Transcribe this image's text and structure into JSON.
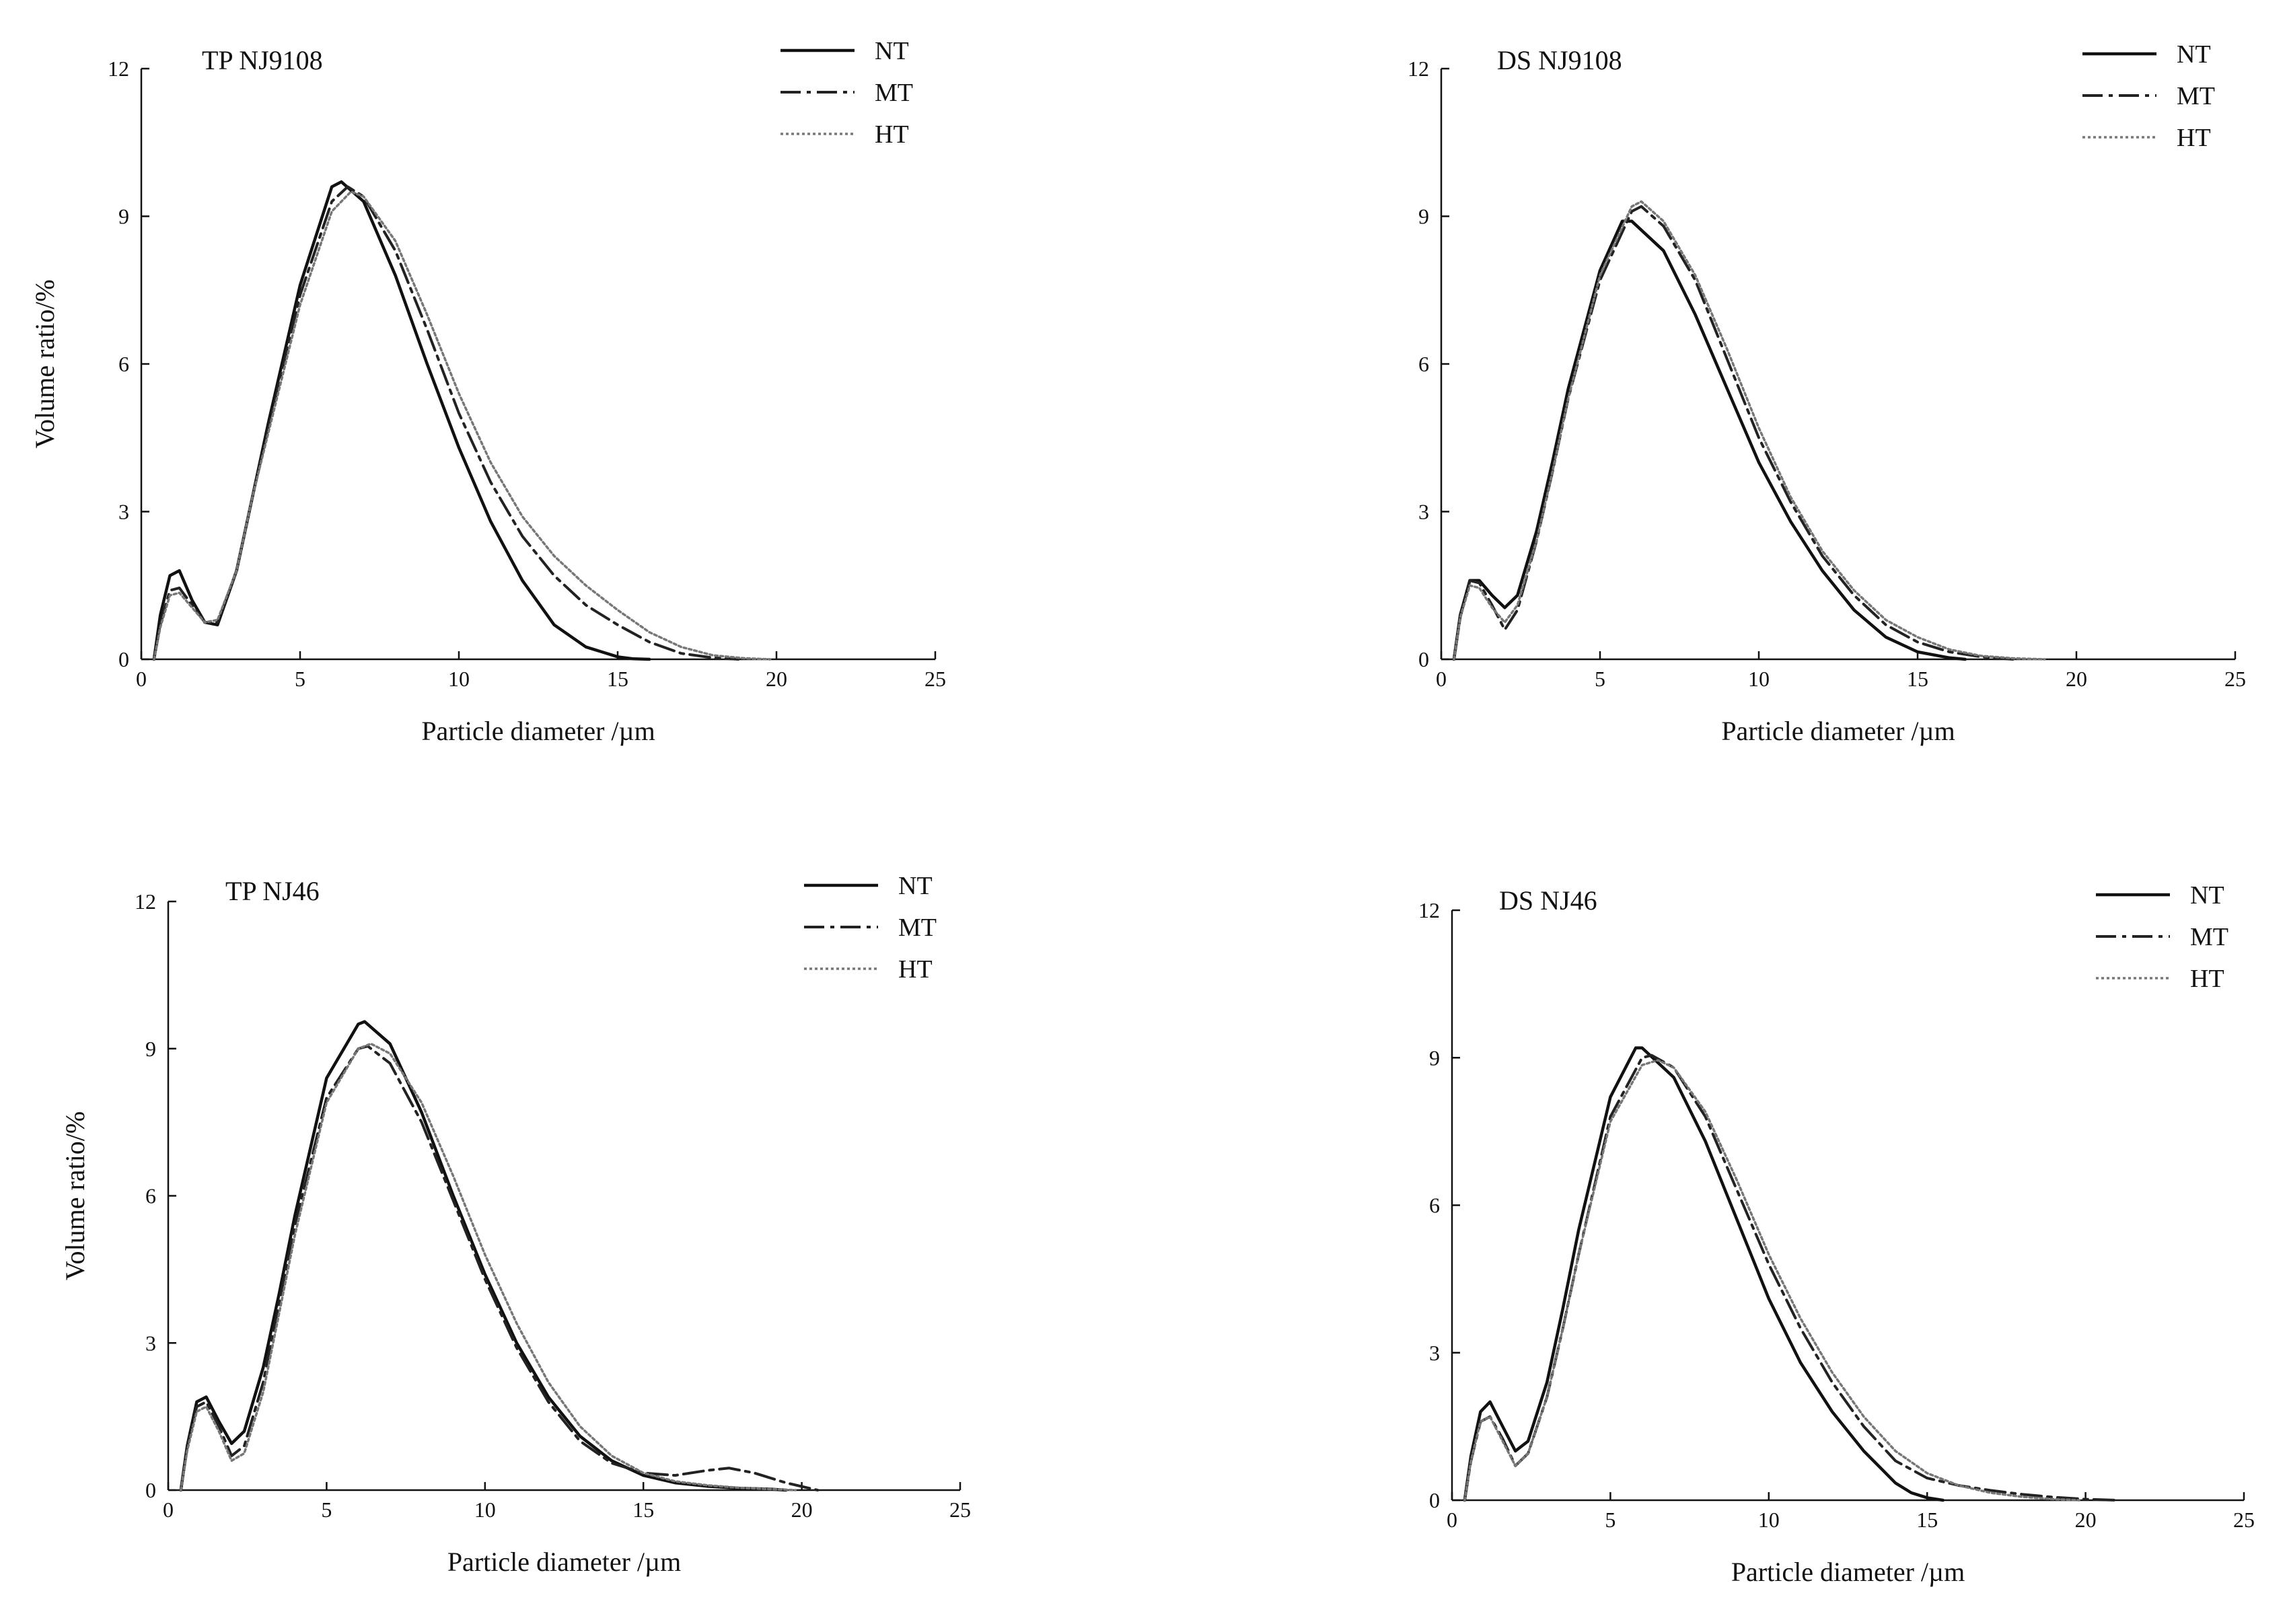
{
  "figure": {
    "colors": {
      "axis": "#111111",
      "NT": "#111111",
      "MT": "#222222",
      "HT": "#777777"
    }
  },
  "chart_data": [
    {
      "type": "line",
      "title": "TP NJ9108",
      "xlabel": "Particle diameter /µm",
      "ylabel": "Volume ratio/%",
      "xlim": [
        0,
        25
      ],
      "ylim": [
        0,
        12
      ],
      "xticks": [
        "0",
        "5",
        "10",
        "15",
        "20",
        "25"
      ],
      "yticks": [
        "0",
        "3",
        "6",
        "9",
        "12"
      ],
      "legend": [
        "NT",
        "MT",
        "HT"
      ],
      "series": [
        {
          "name": "NT",
          "style": "solid",
          "x": [
            0.4,
            0.6,
            0.9,
            1.2,
            1.6,
            2.0,
            2.4,
            3.0,
            3.5,
            4.0,
            5.0,
            6.0,
            6.3,
            7.0,
            8.0,
            9.0,
            10.0,
            11.0,
            12.0,
            13.0,
            14.0,
            15.0,
            15.5,
            16.0
          ],
          "y": [
            0,
            0.9,
            1.7,
            1.8,
            1.2,
            0.75,
            0.7,
            1.8,
            3.3,
            4.8,
            7.6,
            9.6,
            9.7,
            9.3,
            7.8,
            6.0,
            4.3,
            2.8,
            1.6,
            0.7,
            0.25,
            0.05,
            0.01,
            0
          ]
        },
        {
          "name": "MT",
          "style": "dashdot",
          "x": [
            0.4,
            0.6,
            0.9,
            1.2,
            1.6,
            2.0,
            2.4,
            3.0,
            3.5,
            4.0,
            5.0,
            6.0,
            6.5,
            7.0,
            8.0,
            9.0,
            10.0,
            11.0,
            12.0,
            13.0,
            14.0,
            15.0,
            16.0,
            17.0,
            18.0,
            18.8
          ],
          "y": [
            0,
            0.7,
            1.4,
            1.45,
            1.1,
            0.75,
            0.75,
            1.8,
            3.3,
            4.7,
            7.4,
            9.3,
            9.6,
            9.4,
            8.3,
            6.7,
            5.0,
            3.6,
            2.5,
            1.7,
            1.1,
            0.7,
            0.35,
            0.12,
            0.03,
            0
          ]
        },
        {
          "name": "HT",
          "style": "dotted",
          "x": [
            0.4,
            0.6,
            0.9,
            1.2,
            1.6,
            2.0,
            2.4,
            3.0,
            3.5,
            4.0,
            5.0,
            6.0,
            6.6,
            7.0,
            8.0,
            9.0,
            10.0,
            11.0,
            12.0,
            13.0,
            14.0,
            15.0,
            16.0,
            17.0,
            18.0,
            19.0,
            19.8
          ],
          "y": [
            0,
            0.65,
            1.3,
            1.35,
            1.05,
            0.75,
            0.8,
            1.8,
            3.3,
            4.6,
            7.2,
            9.1,
            9.5,
            9.4,
            8.5,
            7.0,
            5.4,
            4.0,
            2.9,
            2.1,
            1.5,
            1.0,
            0.55,
            0.25,
            0.08,
            0.02,
            0
          ]
        }
      ]
    },
    {
      "type": "line",
      "title": "DS NJ9108",
      "xlabel": "Particle diameter /µm",
      "ylabel": "",
      "xlim": [
        0,
        25
      ],
      "ylim": [
        0,
        12
      ],
      "xticks": [
        "0",
        "5",
        "10",
        "15",
        "20",
        "25"
      ],
      "yticks": [
        "0",
        "3",
        "6",
        "9",
        "12"
      ],
      "legend": [
        "NT",
        "MT",
        "HT"
      ],
      "series": [
        {
          "name": "NT",
          "style": "solid",
          "x": [
            0.4,
            0.6,
            0.9,
            1.2,
            1.6,
            2.0,
            2.4,
            3.0,
            3.5,
            4.0,
            5.0,
            5.7,
            6.0,
            7.0,
            8.0,
            9.0,
            10.0,
            11.0,
            12.0,
            13.0,
            14.0,
            15.0,
            16.0,
            16.5
          ],
          "y": [
            0,
            0.9,
            1.6,
            1.6,
            1.3,
            1.05,
            1.3,
            2.6,
            4.0,
            5.5,
            7.9,
            8.9,
            8.9,
            8.3,
            7.0,
            5.5,
            4.0,
            2.8,
            1.8,
            1.0,
            0.45,
            0.15,
            0.03,
            0
          ]
        },
        {
          "name": "MT",
          "style": "dashdot",
          "x": [
            0.4,
            0.6,
            0.9,
            1.2,
            1.6,
            2.0,
            2.4,
            3.0,
            3.5,
            4.0,
            5.0,
            6.0,
            6.3,
            7.0,
            8.0,
            9.0,
            10.0,
            11.0,
            12.0,
            13.0,
            14.0,
            15.0,
            16.0,
            17.0,
            18.0
          ],
          "y": [
            0,
            0.85,
            1.6,
            1.55,
            1.1,
            0.6,
            1.0,
            2.4,
            3.8,
            5.3,
            7.7,
            9.1,
            9.2,
            8.8,
            7.7,
            6.1,
            4.5,
            3.2,
            2.1,
            1.3,
            0.7,
            0.35,
            0.15,
            0.05,
            0
          ]
        },
        {
          "name": "HT",
          "style": "dotted",
          "x": [
            0.4,
            0.6,
            0.9,
            1.2,
            1.6,
            2.0,
            2.4,
            3.0,
            3.5,
            4.0,
            5.0,
            6.0,
            6.3,
            7.0,
            8.0,
            9.0,
            10.0,
            11.0,
            12.0,
            13.0,
            14.0,
            15.0,
            16.0,
            17.0,
            18.0,
            19.0
          ],
          "y": [
            0,
            0.85,
            1.5,
            1.45,
            1.05,
            0.75,
            1.1,
            2.4,
            3.8,
            5.3,
            7.8,
            9.2,
            9.3,
            8.9,
            7.8,
            6.3,
            4.7,
            3.3,
            2.2,
            1.4,
            0.8,
            0.45,
            0.2,
            0.07,
            0.02,
            0
          ]
        }
      ]
    },
    {
      "type": "line",
      "title": "TP NJ46",
      "xlabel": "Particle diameter /µm",
      "ylabel": "Volume ratio/%",
      "xlim": [
        0,
        25
      ],
      "ylim": [
        0,
        12
      ],
      "xticks": [
        "0",
        "5",
        "10",
        "15",
        "20",
        "25"
      ],
      "yticks": [
        "0",
        "3",
        "6",
        "9",
        "12"
      ],
      "legend": [
        "NT",
        "MT",
        "HT"
      ],
      "series": [
        {
          "name": "NT",
          "style": "solid",
          "x": [
            0.4,
            0.6,
            0.9,
            1.2,
            1.6,
            2.0,
            2.4,
            3.0,
            3.5,
            4.0,
            5.0,
            6.0,
            6.2,
            7.0,
            8.0,
            9.0,
            10.0,
            11.0,
            12.0,
            13.0,
            14.0,
            15.0,
            16.0,
            17.0,
            18.0,
            19.0,
            19.5
          ],
          "y": [
            0,
            0.9,
            1.8,
            1.9,
            1.4,
            0.95,
            1.2,
            2.5,
            4.0,
            5.6,
            8.4,
            9.5,
            9.55,
            9.1,
            7.7,
            6.0,
            4.4,
            3.0,
            1.9,
            1.1,
            0.6,
            0.3,
            0.15,
            0.08,
            0.04,
            0.02,
            0
          ]
        },
        {
          "name": "MT",
          "style": "dashdot",
          "x": [
            0.4,
            0.6,
            0.9,
            1.2,
            1.6,
            2.0,
            2.4,
            3.0,
            3.5,
            4.0,
            5.0,
            6.0,
            6.3,
            7.0,
            8.0,
            9.0,
            10.0,
            11.0,
            12.0,
            13.0,
            14.0,
            15.0,
            16.0,
            17.0,
            17.7,
            18.5,
            19.5,
            20.5
          ],
          "y": [
            0,
            0.9,
            1.7,
            1.8,
            1.3,
            0.7,
            0.9,
            2.2,
            3.8,
            5.4,
            8.0,
            9.0,
            9.05,
            8.7,
            7.5,
            5.9,
            4.3,
            2.9,
            1.8,
            1.0,
            0.55,
            0.35,
            0.3,
            0.4,
            0.45,
            0.35,
            0.15,
            0
          ]
        },
        {
          "name": "HT",
          "style": "dotted",
          "x": [
            0.4,
            0.6,
            0.9,
            1.2,
            1.6,
            2.0,
            2.4,
            3.0,
            3.5,
            4.0,
            5.0,
            6.0,
            6.4,
            7.0,
            8.0,
            9.0,
            10.0,
            11.0,
            12.0,
            13.0,
            14.0,
            15.0,
            16.0,
            17.0,
            18.0,
            19.0,
            19.8
          ],
          "y": [
            0,
            0.8,
            1.6,
            1.7,
            1.2,
            0.6,
            0.75,
            2.0,
            3.6,
            5.2,
            7.9,
            9.0,
            9.1,
            8.9,
            7.9,
            6.4,
            4.8,
            3.4,
            2.2,
            1.3,
            0.7,
            0.35,
            0.18,
            0.1,
            0.05,
            0.02,
            0
          ]
        }
      ]
    },
    {
      "type": "line",
      "title": "DS NJ46",
      "xlabel": "Particle diameter /µm",
      "ylabel": "",
      "xlim": [
        0,
        25
      ],
      "ylim": [
        0,
        12
      ],
      "xticks": [
        "0",
        "5",
        "10",
        "15",
        "20",
        "25"
      ],
      "yticks": [
        "0",
        "3",
        "6",
        "9",
        "12"
      ],
      "legend": [
        "NT",
        "MT",
        "HT"
      ],
      "series": [
        {
          "name": "NT",
          "style": "solid",
          "x": [
            0.4,
            0.6,
            0.9,
            1.2,
            1.6,
            2.0,
            2.4,
            3.0,
            3.5,
            4.0,
            5.0,
            5.8,
            6.0,
            7.0,
            8.0,
            9.0,
            10.0,
            11.0,
            12.0,
            13.0,
            14.0,
            14.5,
            15.0,
            15.5
          ],
          "y": [
            0,
            0.9,
            1.8,
            2.0,
            1.5,
            1.0,
            1.2,
            2.4,
            3.9,
            5.5,
            8.2,
            9.2,
            9.2,
            8.6,
            7.3,
            5.7,
            4.1,
            2.8,
            1.8,
            1.0,
            0.35,
            0.15,
            0.05,
            0
          ]
        },
        {
          "name": "MT",
          "style": "dashdot",
          "x": [
            0.4,
            0.6,
            0.9,
            1.2,
            1.6,
            2.0,
            2.4,
            3.0,
            3.5,
            4.0,
            5.0,
            6.0,
            6.3,
            7.0,
            8.0,
            9.0,
            10.0,
            11.0,
            12.0,
            13.0,
            14.0,
            15.0,
            16.0,
            17.0,
            18.0,
            19.0,
            20.0,
            21.0
          ],
          "y": [
            0,
            0.8,
            1.6,
            1.7,
            1.25,
            0.7,
            0.95,
            2.1,
            3.5,
            5.0,
            7.8,
            9.0,
            9.05,
            8.8,
            7.8,
            6.3,
            4.8,
            3.5,
            2.4,
            1.5,
            0.8,
            0.45,
            0.3,
            0.2,
            0.12,
            0.06,
            0.02,
            0
          ]
        },
        {
          "name": "HT",
          "style": "dotted",
          "x": [
            0.4,
            0.6,
            0.9,
            1.2,
            1.6,
            2.0,
            2.4,
            3.0,
            3.5,
            4.0,
            5.0,
            6.0,
            6.5,
            7.0,
            8.0,
            9.0,
            10.0,
            11.0,
            12.0,
            13.0,
            14.0,
            15.0,
            16.0,
            17.0,
            18.0,
            19.0,
            19.8
          ],
          "y": [
            0,
            0.8,
            1.6,
            1.7,
            1.2,
            0.7,
            0.95,
            2.1,
            3.5,
            5.0,
            7.7,
            8.85,
            8.95,
            8.8,
            7.9,
            6.5,
            5.0,
            3.7,
            2.6,
            1.7,
            1.0,
            0.55,
            0.3,
            0.15,
            0.07,
            0.02,
            0
          ]
        }
      ]
    }
  ]
}
